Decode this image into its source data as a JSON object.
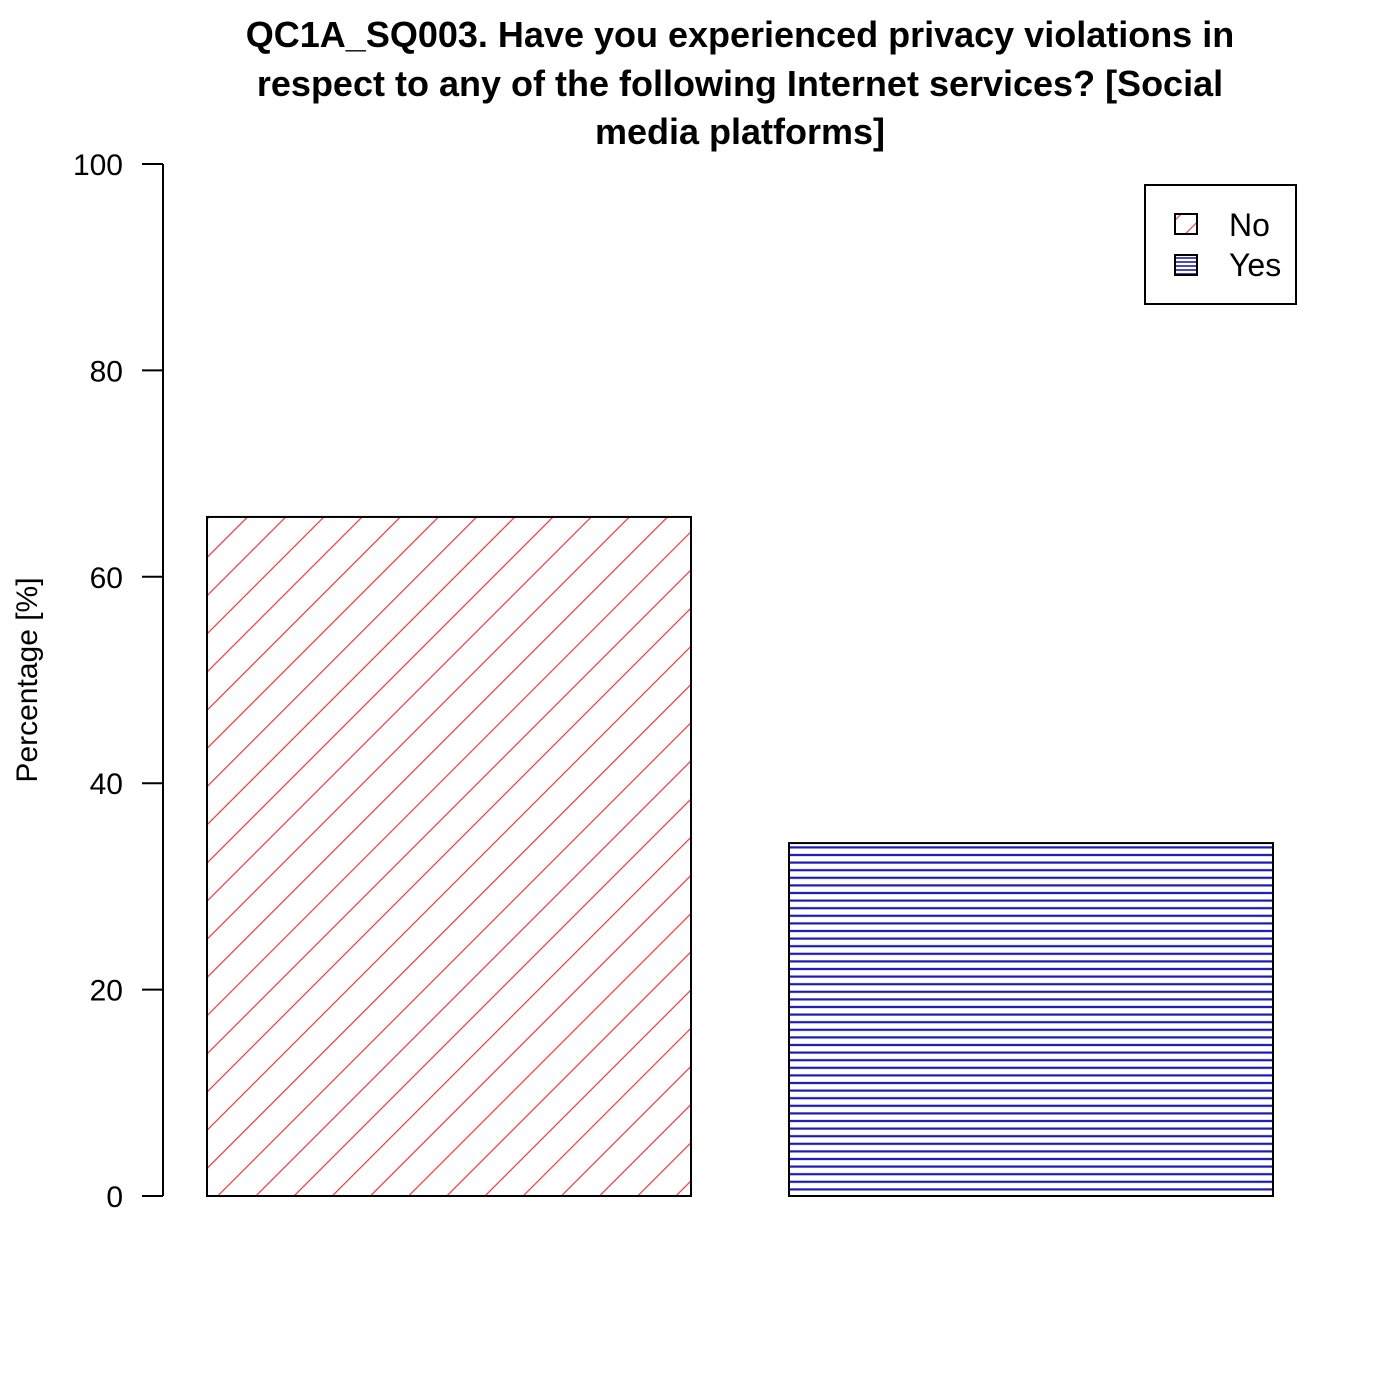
{
  "chart_data": {
    "type": "bar",
    "title_lines": [
      "QC1A_SQ003. Have you experienced privacy violations in",
      "respect to any of the following Internet services? [Social",
      "media platforms]"
    ],
    "ylabel": "Percentage [%]",
    "ylim": [
      0,
      100
    ],
    "yticks": [
      "0",
      "20",
      "40",
      "60",
      "80",
      "100"
    ],
    "categories": [
      "No",
      "Yes"
    ],
    "values": [
      65.8,
      34.2
    ],
    "series_colors": [
      "#e8373f",
      "#1a1ab4"
    ],
    "fill_patterns": [
      "diagonal-hatch",
      "horizontal-hatch"
    ],
    "legend": {
      "position": "top-right",
      "entries": [
        "No",
        "Yes"
      ]
    }
  }
}
